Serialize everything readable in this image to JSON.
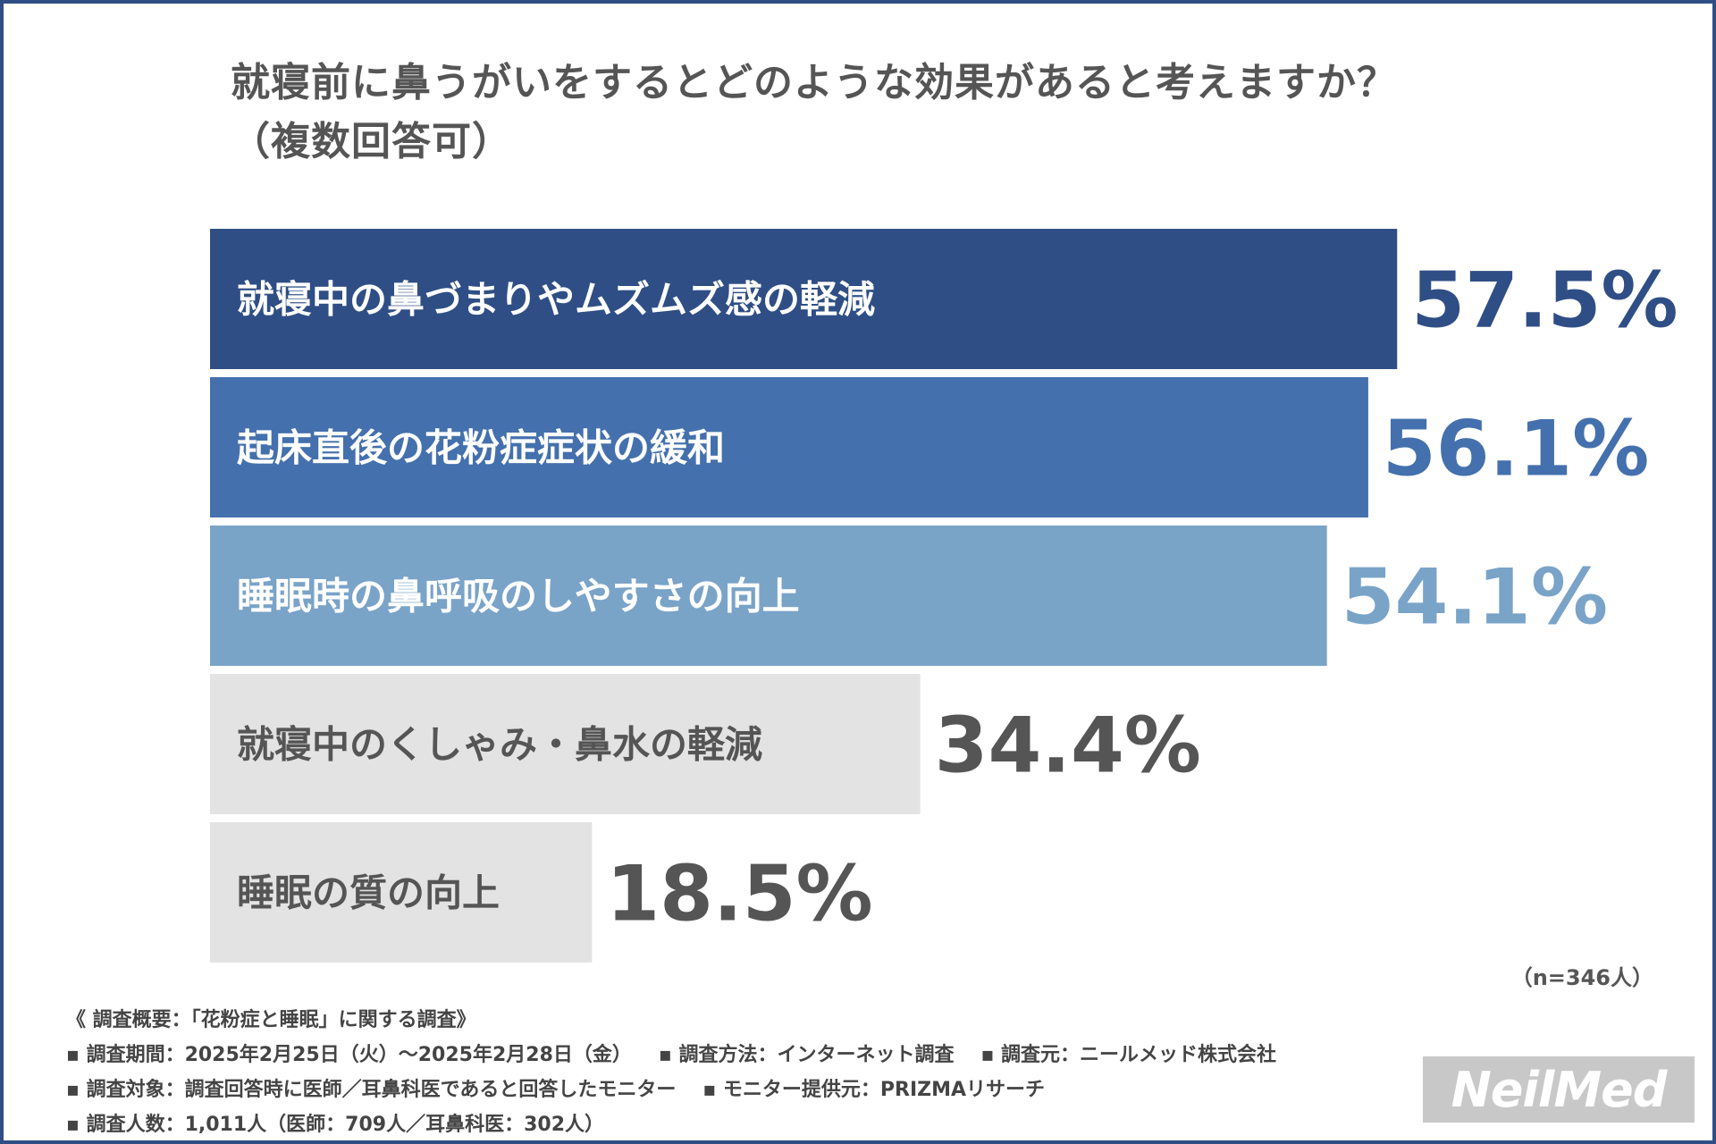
{
  "chart_data": {
    "type": "bar",
    "orientation": "horizontal",
    "title_line1": "就寝前に鼻うがいをするとどのような効果があると考えますか？",
    "title_line2": "（複数回答可）",
    "categories": [
      "就寝中の鼻づまりやムズムズ感の軽減",
      "起床直後の花粉症症状の緩和",
      "睡眠時の鼻呼吸のしやすさの向上",
      "就寝中のくしゃみ・鼻水の軽減",
      "睡眠の質の向上"
    ],
    "values": [
      57.5,
      56.1,
      54.1,
      34.4,
      18.5
    ],
    "value_labels": [
      "57.5%",
      "56.1%",
      "54.1%",
      "34.4%",
      "18.5%"
    ],
    "bar_colors": [
      "#2f4e85",
      "#4470ad",
      "#7aa3c8",
      "#e3e3e3",
      "#e3e3e3"
    ],
    "label_colors": [
      "#ffffff",
      "#ffffff",
      "#ffffff",
      "#555555",
      "#555555"
    ],
    "value_colors": [
      "#2f4e85",
      "#4470ad",
      "#7aa3c8",
      "#555555",
      "#555555"
    ],
    "note": "（n=346人）"
  },
  "footer": {
    "overview": "《 調査概要：「花粉症と睡眠」に関する調査》",
    "period": "▪ 調査期間：2025年2月25日（火）～2025年2月28日（金）",
    "method": "▪ 調査方法：インターネット調査",
    "source": "▪ 調査元：ニールメッド株式会社",
    "target": "▪ 調査対象：調査回答時に医師／耳鼻科医であると回答したモニター",
    "provider": "▪ モニター提供元：PRIZMAリサーチ",
    "count": "▪ 調査人数：1,011人（医師：709人／耳鼻科医：302人）"
  },
  "logo": {
    "text": "NeilMed"
  },
  "colors": {
    "frame": "#2f4e85",
    "text": "#555555"
  }
}
